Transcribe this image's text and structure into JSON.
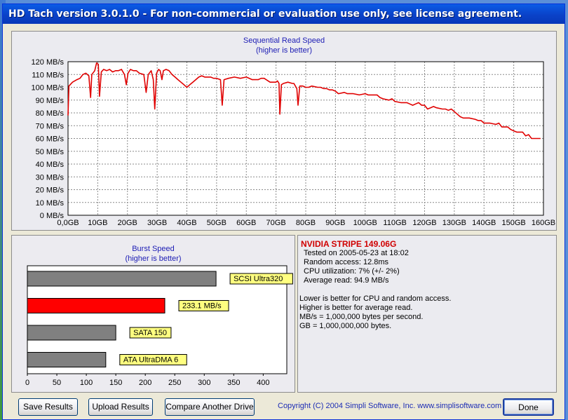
{
  "window": {
    "title": "HD Tach version 3.0.1.0  - For non-commercial or evaluation use only, see license agreement."
  },
  "colors": {
    "title_bar": "#0a4fd9",
    "read_line": "#e00000",
    "highlight_bar": "#ff0000",
    "comparison_bar": "#808080",
    "label_bg": "#ffff80",
    "title_text": "#1c1cb4",
    "drive_name": "#d00000"
  },
  "read_chart": {
    "title": "Sequential Read Speed",
    "subtitle": "(higher is better)"
  },
  "burst_chart": {
    "title": "Burst Speed",
    "subtitle": "(higher is better)"
  },
  "chart_data": [
    {
      "type": "line",
      "title": "Sequential Read Speed",
      "subtitle": "(higher is better)",
      "xlabel": "",
      "ylabel": "",
      "x_unit": "GB",
      "y_unit": "MB/s",
      "xlim": [
        0,
        160
      ],
      "ylim": [
        0,
        120
      ],
      "grid": true,
      "x_ticks": [
        "0,0GB",
        "10GB",
        "20GB",
        "30GB",
        "40GB",
        "50GB",
        "60GB",
        "70GB",
        "80GB",
        "90GB",
        "100GB",
        "110GB",
        "120GB",
        "130GB",
        "140GB",
        "150GB",
        "160GB"
      ],
      "y_ticks": [
        "0 MB/s",
        "10 MB/s",
        "20 MB/s",
        "30 MB/s",
        "40 MB/s",
        "50 MB/s",
        "60 MB/s",
        "70 MB/s",
        "80 MB/s",
        "90 MB/s",
        "100 MB/s",
        "110 MB/s",
        "120 MB/s"
      ],
      "series": [
        {
          "points": [
            [
              0,
              78
            ],
            [
              0.3,
              101
            ],
            [
              1.5,
              104
            ],
            [
              3,
              106
            ],
            [
              4,
              107
            ],
            [
              5,
              110
            ],
            [
              6,
              111
            ],
            [
              7,
              109
            ],
            [
              7.6,
              92
            ],
            [
              8,
              110
            ],
            [
              9,
              113
            ],
            [
              9.6,
              119
            ],
            [
              10.2,
              118
            ],
            [
              10.6,
              93
            ],
            [
              11.2,
              112
            ],
            [
              12,
              114
            ],
            [
              13,
              113
            ],
            [
              14,
              114
            ],
            [
              15,
              112
            ],
            [
              16,
              113
            ],
            [
              17,
              113
            ],
            [
              18,
              114
            ],
            [
              19,
              110
            ],
            [
              19.6,
              102
            ],
            [
              20.2,
              111
            ],
            [
              21,
              114
            ],
            [
              22,
              113
            ],
            [
              23,
              113
            ],
            [
              24,
              111
            ],
            [
              25.5,
              110
            ],
            [
              26.3,
              96
            ],
            [
              27,
              110
            ],
            [
              28,
              113
            ],
            [
              28.7,
              106
            ],
            [
              29.2,
              83
            ],
            [
              29.8,
              111
            ],
            [
              30.5,
              114
            ],
            [
              31,
              113
            ],
            [
              31.6,
              106
            ],
            [
              32.1,
              113
            ],
            [
              33,
              114
            ],
            [
              34,
              113
            ],
            [
              35,
              110
            ],
            [
              36,
              108
            ],
            [
              37,
              106
            ],
            [
              38,
              104
            ],
            [
              39,
              102
            ],
            [
              40,
              100
            ],
            [
              41,
              102
            ],
            [
              42,
              104
            ],
            [
              43,
              106
            ],
            [
              44,
              108
            ],
            [
              45,
              109
            ],
            [
              46,
              108
            ],
            [
              48,
              108
            ],
            [
              49,
              107
            ],
            [
              50,
              107
            ],
            [
              51.3,
              106
            ],
            [
              51.9,
              86
            ],
            [
              52.5,
              106
            ],
            [
              54,
              107
            ],
            [
              56,
              108
            ],
            [
              58,
              107
            ],
            [
              60,
              108
            ],
            [
              62,
              106
            ],
            [
              64,
              106
            ],
            [
              65,
              107
            ],
            [
              66,
              107
            ],
            [
              68,
              104
            ],
            [
              69,
              104
            ],
            [
              70,
              104
            ],
            [
              70.5,
              105
            ],
            [
              71,
              103
            ],
            [
              71.3,
              79
            ],
            [
              71.8,
              102
            ],
            [
              72.5,
              103
            ],
            [
              74,
              104
            ],
            [
              75.5,
              103
            ],
            [
              76,
              103
            ],
            [
              77,
              99
            ],
            [
              77.4,
              86
            ],
            [
              78,
              101
            ],
            [
              79,
              101
            ],
            [
              80,
              100
            ],
            [
              81,
              100
            ],
            [
              82,
              101
            ],
            [
              84,
              100
            ],
            [
              85,
              100
            ],
            [
              86,
              99
            ],
            [
              87,
              99
            ],
            [
              88,
              98
            ],
            [
              89,
              98
            ],
            [
              90,
              97
            ],
            [
              91,
              95
            ],
            [
              93,
              96
            ],
            [
              94,
              95
            ],
            [
              96,
              95
            ],
            [
              98,
              94
            ],
            [
              100,
              95
            ],
            [
              101,
              94
            ],
            [
              103,
              94
            ],
            [
              104,
              94
            ],
            [
              105,
              92
            ],
            [
              106,
              91
            ],
            [
              108,
              90
            ],
            [
              109,
              91
            ],
            [
              110,
              89
            ],
            [
              112,
              88
            ],
            [
              113,
              88
            ],
            [
              114,
              88
            ],
            [
              115,
              87
            ],
            [
              116,
              86
            ],
            [
              117,
              87
            ],
            [
              118,
              88
            ],
            [
              119,
              86
            ],
            [
              120,
              86
            ],
            [
              121,
              83
            ],
            [
              122,
              84
            ],
            [
              123,
              85
            ],
            [
              124,
              84
            ],
            [
              126,
              83
            ],
            [
              127,
              83
            ],
            [
              128,
              82
            ],
            [
              129,
              83
            ],
            [
              130,
              81
            ],
            [
              131,
              79
            ],
            [
              132,
              77
            ],
            [
              133,
              76
            ],
            [
              135,
              76
            ],
            [
              137,
              75
            ],
            [
              138,
              74
            ],
            [
              139,
              74
            ],
            [
              140,
              72
            ],
            [
              142,
              72
            ],
            [
              144,
              71
            ],
            [
              145,
              72
            ],
            [
              146,
              69
            ],
            [
              148,
              69
            ],
            [
              149,
              67
            ],
            [
              150,
              66
            ],
            [
              151,
              65
            ],
            [
              153,
              65
            ],
            [
              154,
              62
            ],
            [
              155,
              63
            ],
            [
              156,
              60
            ],
            [
              158,
              60
            ],
            [
              159,
              60
            ]
          ]
        }
      ]
    },
    {
      "type": "bar",
      "orientation": "horizontal",
      "title": "Burst Speed",
      "subtitle": "(higher is better)",
      "xlim": [
        0,
        440
      ],
      "x_ticks": [
        "0",
        "50",
        "100",
        "150",
        "200",
        "250",
        "300",
        "350",
        "400"
      ],
      "categories": [
        "SCSI Ultra320",
        "233.1 MB/s",
        "SATA 150",
        "ATA UltraDMA 6"
      ],
      "values": [
        320,
        233.1,
        150,
        133
      ],
      "highlighted_index": 1
    }
  ],
  "stats": {
    "drive_name": "NVIDIA STRIPE 149.06G",
    "tested_on": "Tested on 2005-05-23 at 18:02",
    "random_access": "Random access: 12.8ms",
    "cpu_util": "CPU utilization: 7% (+/- 2%)",
    "avg_read": "Average read: 94.9 MB/s",
    "note1": "Lower is better for CPU and random access.",
    "note2": "Higher is better for average read.",
    "note3": "MB/s = 1,000,000 bytes per second.",
    "note4": "GB = 1,000,000,000 bytes."
  },
  "buttons": {
    "save": "Save Results",
    "upload": "Upload Results",
    "compare": "Compare Another Drive",
    "done": "Done"
  },
  "footer": {
    "copyright": "Copyright (C) 2004 Simpli Software, Inc. www.simplisoftware.com"
  }
}
